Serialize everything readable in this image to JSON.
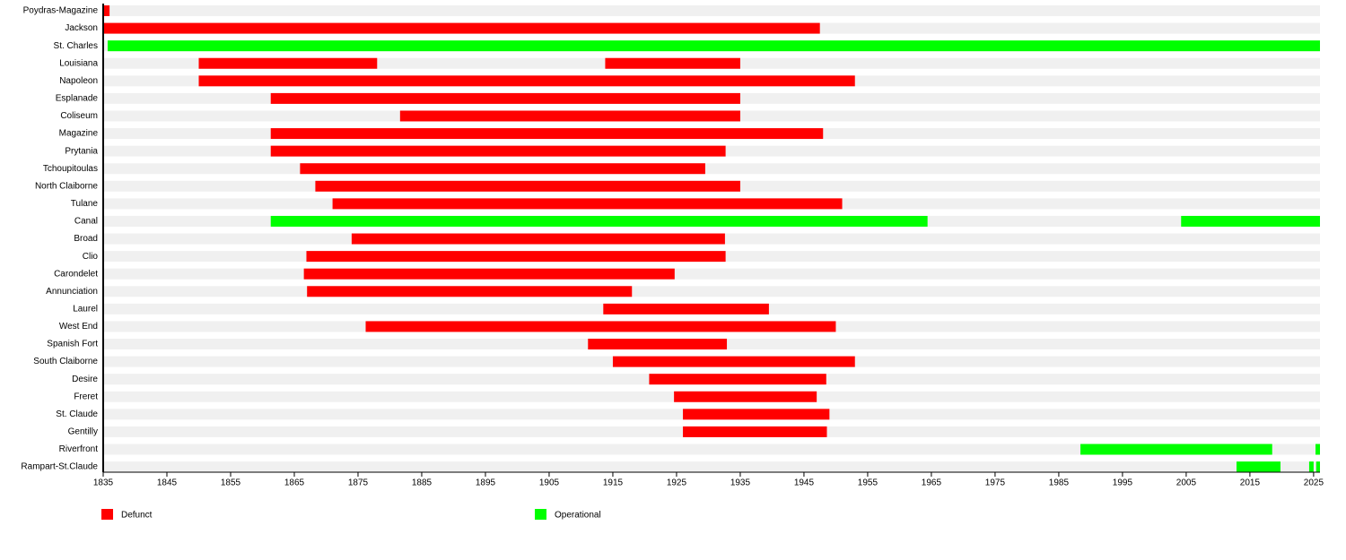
{
  "chart_data": {
    "type": "timeline",
    "categories": [
      "Poydras-Magazine",
      "Jackson",
      "St. Charles",
      "Louisiana",
      "Napoleon",
      "Esplanade",
      "Coliseum",
      "Magazine",
      "Prytania",
      "Tchoupitoulas",
      "North Claiborne",
      "Tulane",
      "Canal",
      "Broad",
      "Clio",
      "Carondelet",
      "Annunciation",
      "Laurel",
      "West End",
      "Spanish Fort",
      "South Claiborne",
      "Desire",
      "Freret",
      "St. Claude",
      "Gentilly",
      "Riverfront",
      "Rampart-St.Claude"
    ],
    "series": [
      {
        "name": "Defunct",
        "color": "#ff0000",
        "values": [
          [
            [
              1835,
              1836
            ]
          ],
          [
            [
              1835,
              1947.5
            ]
          ],
          [],
          [
            [
              1850,
              1878
            ],
            [
              1913.8,
              1935
            ]
          ],
          [
            [
              1850,
              1953
            ]
          ],
          [
            [
              1861.3,
              1935
            ]
          ],
          [
            [
              1881.6,
              1935
            ]
          ],
          [
            [
              1861.3,
              1948
            ]
          ],
          [
            [
              1861.3,
              1932.7
            ]
          ],
          [
            [
              1865.9,
              1929.5
            ]
          ],
          [
            [
              1868.3,
              1935
            ]
          ],
          [
            [
              1871,
              1951
            ]
          ],
          [],
          [
            [
              1874,
              1932.6
            ]
          ],
          [
            [
              1866.9,
              1932.7
            ]
          ],
          [
            [
              1866.5,
              1924.7
            ]
          ],
          [
            [
              1867,
              1918
            ]
          ],
          [
            [
              1913.5,
              1939.5
            ]
          ],
          [
            [
              1876.2,
              1950
            ]
          ],
          [
            [
              1911.1,
              1932.9
            ]
          ],
          [
            [
              1915,
              1953
            ]
          ],
          [
            [
              1920.7,
              1948.5
            ]
          ],
          [
            [
              1924.6,
              1947
            ]
          ],
          [
            [
              1926,
              1949
            ]
          ],
          [
            [
              1926,
              1948.6
            ]
          ],
          [],
          []
        ]
      },
      {
        "name": "Operational",
        "color": "#00ff00",
        "values": [
          [],
          [],
          [
            [
              1835.7,
              2026
            ]
          ],
          [],
          [],
          [],
          [],
          [],
          [],
          [],
          [],
          [],
          [
            [
              1861.3,
              1964.4
            ],
            [
              2004.2,
              2026
            ]
          ],
          [],
          [],
          [],
          [],
          [],
          [],
          [],
          [],
          [],
          [],
          [],
          [],
          [
            [
              1988.4,
              2018.5
            ],
            [
              2025.3,
              2026
            ]
          ],
          [
            [
              2012.9,
              2019.8
            ],
            [
              2024.3,
              2025
            ],
            [
              2025.4,
              2026
            ]
          ]
        ]
      }
    ],
    "xlim": [
      1835,
      2026
    ],
    "xticks": [
      1835,
      1845,
      1855,
      1865,
      1875,
      1885,
      1895,
      1905,
      1915,
      1925,
      1935,
      1945,
      1955,
      1965,
      1975,
      1985,
      1995,
      2005,
      2015,
      2025
    ]
  }
}
